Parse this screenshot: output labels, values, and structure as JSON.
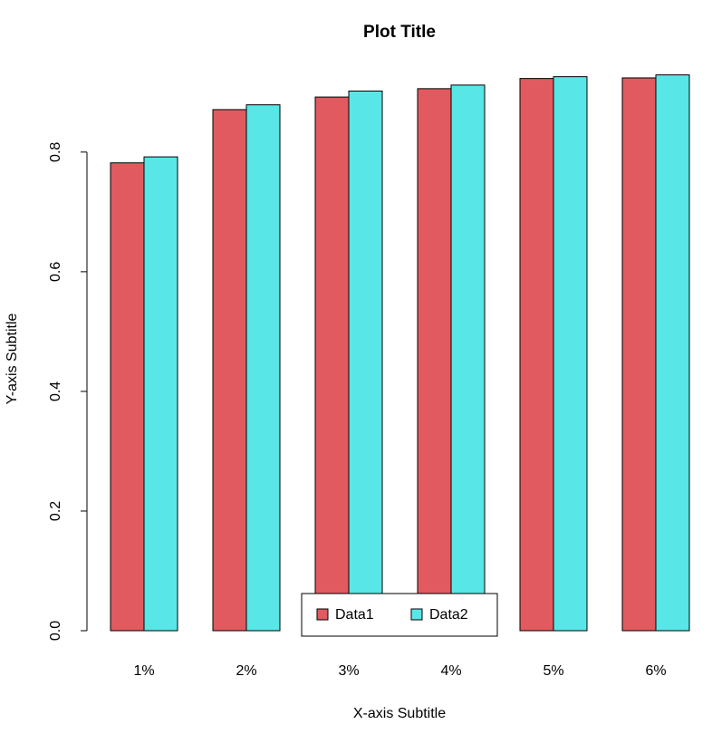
{
  "chart_data": {
    "type": "bar",
    "title": "Plot Title",
    "x_label": "X-axis Subtitle",
    "y_label": "Y-axis Subtitle",
    "categories": [
      "1%",
      "2%",
      "3%",
      "4%",
      "5%",
      "6%"
    ],
    "series": [
      {
        "name": "Data1",
        "color": "#e05a5f",
        "values": [
          0.782,
          0.871,
          0.892,
          0.906,
          0.923,
          0.924
        ]
      },
      {
        "name": "Data2",
        "color": "#59e6e6",
        "values": [
          0.792,
          0.879,
          0.902,
          0.912,
          0.926,
          0.929
        ]
      }
    ],
    "ylim": [
      0,
      0.93
    ],
    "yticks": [
      {
        "value": 0,
        "label": "0.0"
      },
      0.2,
      0.4,
      0.6,
      0.8
    ],
    "legend": "bottom"
  }
}
